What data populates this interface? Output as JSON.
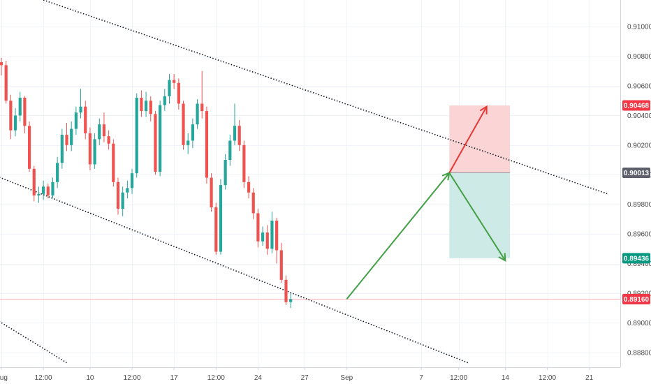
{
  "chart_data": {
    "type": "candlestick",
    "title": "",
    "xlabel": "",
    "ylabel": "",
    "ylim": [
      0.887,
      0.9118
    ],
    "y_ticks": [
      "0.91000",
      "0.90800",
      "0.90600",
      "0.90400",
      "0.90200",
      "0.90000",
      "0.89800",
      "0.89600",
      "0.89400",
      "0.89200",
      "0.89000",
      "0.88800"
    ],
    "x_ticks": [
      {
        "label": "Aug",
        "t": 0
      },
      {
        "label": "12:00",
        "t": 9
      },
      {
        "label": "10",
        "t": 19
      },
      {
        "label": "12:00",
        "t": 28
      },
      {
        "label": "17",
        "t": 37
      },
      {
        "label": "12:00",
        "t": 46
      },
      {
        "label": "24",
        "t": 55
      },
      {
        "label": "27",
        "t": 65
      },
      {
        "label": "Sep",
        "t": 74
      },
      {
        "label": "7",
        "t": 90
      },
      {
        "label": "12:00",
        "t": 98
      },
      {
        "label": "14",
        "t": 108
      },
      {
        "label": "12:00",
        "t": 117
      },
      {
        "label": "21",
        "t": 126
      }
    ],
    "candles": [
      [
        0.9076,
        0.9079,
        0.9067,
        0.9074
      ],
      [
        0.9074,
        0.9077,
        0.9048,
        0.905
      ],
      [
        0.905,
        0.9054,
        0.9024,
        0.903
      ],
      [
        0.903,
        0.9045,
        0.9026,
        0.904
      ],
      [
        0.904,
        0.9056,
        0.9036,
        0.9052
      ],
      [
        0.9052,
        0.9053,
        0.9028,
        0.9033
      ],
      [
        0.9033,
        0.9036,
        0.9002,
        0.9004
      ],
      [
        0.9004,
        0.9006,
        0.8982,
        0.8986
      ],
      [
        0.8986,
        0.8992,
        0.8981,
        0.8987
      ],
      [
        0.8987,
        0.8996,
        0.8983,
        0.8992
      ],
      [
        0.8992,
        0.8994,
        0.8984,
        0.8986
      ],
      [
        0.8986,
        0.8998,
        0.8984,
        0.8995
      ],
      [
        0.8995,
        0.9012,
        0.8991,
        0.9008
      ],
      [
        0.9008,
        0.9031,
        0.9004,
        0.9027
      ],
      [
        0.9027,
        0.9035,
        0.9016,
        0.902
      ],
      [
        0.902,
        0.9036,
        0.9016,
        0.9031
      ],
      [
        0.9031,
        0.9046,
        0.9027,
        0.9042
      ],
      [
        0.9042,
        0.9058,
        0.9038,
        0.9046
      ],
      [
        0.9046,
        0.905,
        0.9024,
        0.9028
      ],
      [
        0.9028,
        0.9032,
        0.9003,
        0.9007
      ],
      [
        0.9007,
        0.9028,
        0.9004,
        0.9024
      ],
      [
        0.9024,
        0.9038,
        0.902,
        0.9034
      ],
      [
        0.9034,
        0.9042,
        0.9022,
        0.9026
      ],
      [
        0.9026,
        0.903,
        0.9017,
        0.9021
      ],
      [
        0.9021,
        0.9024,
        0.8992,
        0.8995
      ],
      [
        0.8995,
        0.8998,
        0.8973,
        0.8977
      ],
      [
        0.8977,
        0.8992,
        0.8972,
        0.8988
      ],
      [
        0.8988,
        0.8996,
        0.8984,
        0.8991
      ],
      [
        0.8991,
        0.9004,
        0.8987,
        0.9001
      ],
      [
        0.9001,
        0.9055,
        0.8998,
        0.9052
      ],
      [
        0.9052,
        0.9057,
        0.9039,
        0.9043
      ],
      [
        0.9043,
        0.9056,
        0.9039,
        0.905
      ],
      [
        0.905,
        0.9053,
        0.9036,
        0.9041
      ],
      [
        0.9041,
        0.9043,
        0.9,
        0.9002
      ],
      [
        0.9002,
        0.905,
        0.8999,
        0.9047
      ],
      [
        0.9047,
        0.9058,
        0.9043,
        0.9053
      ],
      [
        0.9053,
        0.9068,
        0.9048,
        0.9064
      ],
      [
        0.9064,
        0.9068,
        0.9058,
        0.9062
      ],
      [
        0.9062,
        0.9065,
        0.9044,
        0.9048
      ],
      [
        0.9048,
        0.905,
        0.9017,
        0.902
      ],
      [
        0.902,
        0.9028,
        0.9014,
        0.9023
      ],
      [
        0.9023,
        0.9038,
        0.9018,
        0.9034
      ],
      [
        0.9034,
        0.9051,
        0.9031,
        0.9048
      ],
      [
        0.9048,
        0.907,
        0.9038,
        0.9043
      ],
      [
        0.9043,
        0.9046,
        0.8994,
        0.8998
      ],
      [
        0.8998,
        0.9001,
        0.8975,
        0.8978
      ],
      [
        0.8978,
        0.8981,
        0.8946,
        0.8948
      ],
      [
        0.8948,
        0.8997,
        0.8946,
        0.8993
      ],
      [
        0.8993,
        0.9014,
        0.899,
        0.901
      ],
      [
        0.901,
        0.9027,
        0.9006,
        0.9023
      ],
      [
        0.9023,
        0.9048,
        0.902,
        0.9033
      ],
      [
        0.9033,
        0.9037,
        0.9016,
        0.902
      ],
      [
        0.902,
        0.9023,
        0.8991,
        0.8995
      ],
      [
        0.8995,
        0.8999,
        0.8984,
        0.8988
      ],
      [
        0.8988,
        0.8991,
        0.897,
        0.8974
      ],
      [
        0.8974,
        0.8977,
        0.8951,
        0.8955
      ],
      [
        0.8955,
        0.8965,
        0.8952,
        0.8961
      ],
      [
        0.8961,
        0.8966,
        0.8946,
        0.895
      ],
      [
        0.895,
        0.8975,
        0.8947,
        0.8969
      ],
      [
        0.8969,
        0.8971,
        0.894,
        0.8949
      ],
      [
        0.8949,
        0.8954,
        0.8927,
        0.8929
      ],
      [
        0.8929,
        0.8932,
        0.8912,
        0.8914
      ],
      [
        0.8914,
        0.892,
        0.891,
        0.8916
      ]
    ],
    "price_tags": [
      {
        "label": "0.90468",
        "value": 0.90468,
        "color": "#f23645"
      },
      {
        "label": "0.90013",
        "value": 0.90013,
        "color": "#5d606b"
      },
      {
        "label": "0.89436",
        "value": 0.89436,
        "color": "#089981"
      },
      {
        "label": "0.89160",
        "value": 0.8916,
        "color": "#f23645"
      }
    ],
    "channel": {
      "upper": [
        {
          "t": 9,
          "v": 0.9118
        },
        {
          "t": 130,
          "v": 0.8987
        }
      ],
      "lower": [
        {
          "t": -1,
          "v": 0.8999
        },
        {
          "t": 100,
          "v": 0.8873
        }
      ],
      "extra": [
        {
          "t": -1,
          "v": 0.8902
        },
        {
          "t": 14,
          "v": 0.8873
        }
      ]
    },
    "position": {
      "t_start": 96,
      "t_end": 109,
      "entry": 0.90013,
      "target_up": 0.90468,
      "target_down": 0.89436
    },
    "arrows": [
      {
        "from": {
          "t": 74,
          "v": 0.8916
        },
        "to": {
          "t": 96,
          "v": 0.90013
        },
        "color": "#43a047"
      },
      {
        "from": {
          "t": 96,
          "v": 0.90013
        },
        "to": {
          "t": 104,
          "v": 0.9046
        },
        "color": "#e53935"
      },
      {
        "from": {
          "t": 96,
          "v": 0.90013
        },
        "to": {
          "t": 108,
          "v": 0.8942
        },
        "color": "#43a047"
      }
    ],
    "colors": {
      "up": "#26a69a",
      "down": "#ef5350",
      "grid": "#f0f3fa",
      "axis": "#d1d4dc",
      "risk_fill": "#fbd5d6",
      "reward_fill": "#cdeae6"
    },
    "grid": true
  }
}
